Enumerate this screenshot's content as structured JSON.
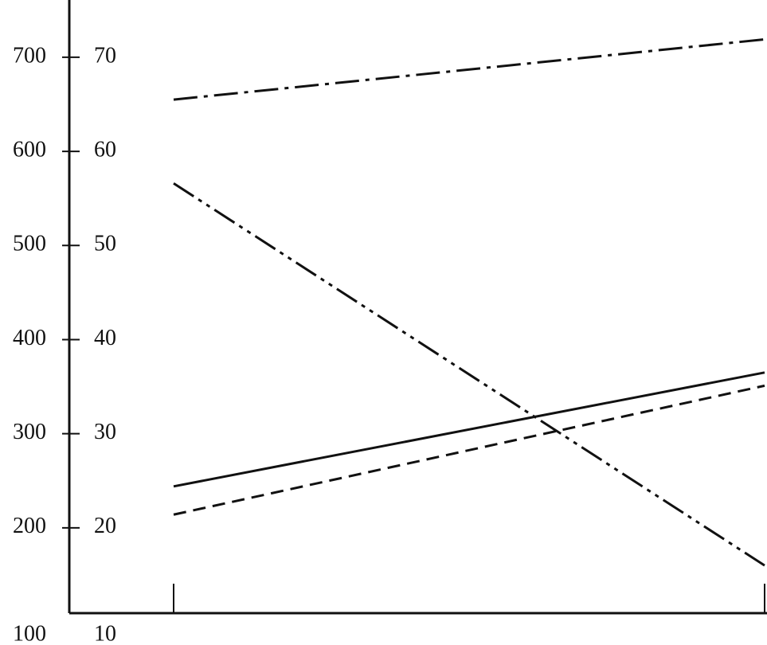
{
  "chart_data": {
    "type": "line",
    "categories": [
      null,
      null
    ],
    "series": [
      {
        "color": "#111111",
        "dash": "dash-dot",
        "values": [
          655,
          719
        ]
      },
      {
        "color": "#111111",
        "dash": "dash-dot-dot",
        "values": [
          566,
          160
        ]
      },
      {
        "color": "#111111",
        "dash": "solid",
        "values": [
          244,
          365
        ]
      },
      {
        "color": "#111111",
        "dash": "dashed",
        "values": [
          214,
          351
        ]
      }
    ],
    "ylim": [
      100,
      760
    ],
    "yticks": [
      100,
      200,
      300,
      400,
      500,
      600,
      700
    ],
    "y2lim": [
      10,
      76
    ],
    "y2ticks": [
      10,
      20,
      30,
      40,
      50,
      60,
      70
    ],
    "grid": false
  }
}
